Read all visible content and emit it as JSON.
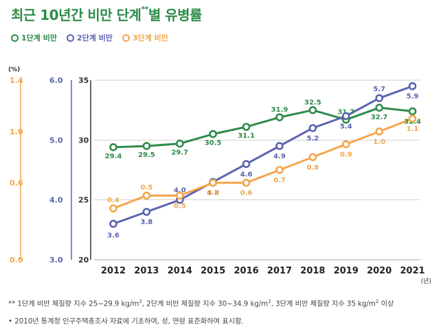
{
  "title": "최근 10년간 비만 단계",
  "title_suffix": "**",
  "title_end": "별 유병률",
  "colors": {
    "stage1": "#2e8b4a",
    "stage2": "#5a63b0",
    "stage3": "#f3a54a"
  },
  "chart_data": {
    "type": "line",
    "categories": [
      "2012",
      "2013",
      "2014",
      "2015",
      "2016",
      "2017",
      "2018",
      "2019",
      "2020",
      "2021"
    ],
    "x_unit": "(년)",
    "y_unit": "(%)",
    "grid": true,
    "legend_position": "top-left",
    "axes": [
      {
        "id": "stage3",
        "ylim": [
          0.0,
          1.4
        ],
        "ticks": [
          "0.0",
          "0.6",
          "1.0",
          "1.4"
        ]
      },
      {
        "id": "stage2",
        "ylim": [
          3.0,
          6.0
        ],
        "ticks": [
          "3.0",
          "4.0",
          "5.0",
          "6.0"
        ]
      },
      {
        "id": "stage1",
        "ylim": [
          20,
          35
        ],
        "ticks": [
          "20",
          "25",
          "30",
          "35"
        ]
      }
    ],
    "series": [
      {
        "name": "1단계 비만",
        "axis": "stage1",
        "values": [
          29.4,
          29.5,
          29.7,
          30.5,
          31.1,
          31.9,
          32.5,
          31.7,
          32.7,
          32.4
        ],
        "labels": [
          "29.4",
          "29.5",
          "29.7",
          "30.5",
          "31.1",
          "31.9",
          "32.5",
          "31.7",
          "32.7",
          "32.4"
        ]
      },
      {
        "name": "2단계 비만",
        "axis": "stage2",
        "values": [
          3.6,
          3.8,
          4.0,
          4.3,
          4.6,
          4.9,
          5.2,
          5.4,
          5.7,
          5.9
        ],
        "labels": [
          "3.6",
          "3.8",
          "4.0",
          "4.3",
          "4.6",
          "4.9",
          "5.2",
          "5.4",
          "5.7",
          "5.9"
        ]
      },
      {
        "name": "3단계 비만",
        "axis": "stage3",
        "values": [
          0.4,
          0.5,
          0.5,
          0.6,
          0.6,
          0.7,
          0.8,
          0.9,
          1.0,
          1.1
        ],
        "labels": [
          "0.4",
          "0.5",
          "0.5",
          "0.6",
          "0.6",
          "0.7",
          "0.8",
          "0.9",
          "1.0",
          "1.1"
        ]
      }
    ]
  },
  "notes": {
    "line1_a": "** 1단계 비만 체질량 지수 25~29.9 kg/m",
    "line1_b": ", 2단계 비만 체질량 지수 30~34.9 kg/m",
    "line1_c": ", 3단계 비만 체질량 지수 35 kg/m",
    "line1_d": " 이상",
    "sup": "2",
    "line2": "• 2010년 통계청 인구주택총조사 자료에 기초하여, 성, 연령 표준화하여 표시함."
  }
}
